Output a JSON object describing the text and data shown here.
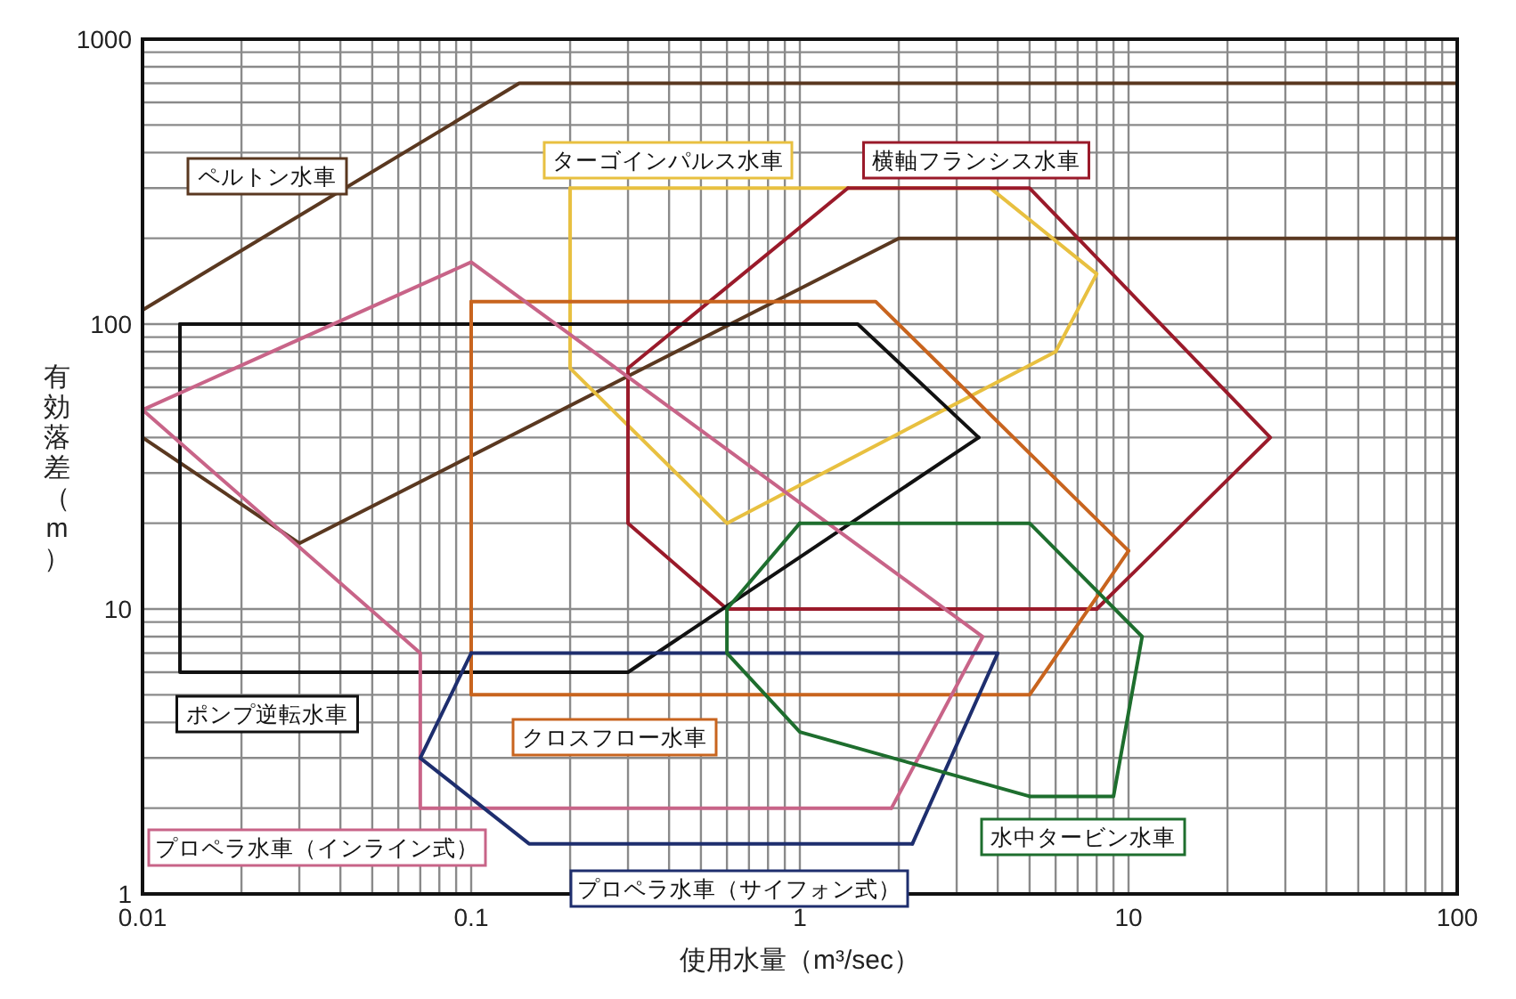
{
  "chart_data": {
    "type": "line",
    "xlabel": "使用水量（m³/sec）",
    "ylabel": "有効落差（m）",
    "log": "xy",
    "grid": true,
    "legend": false,
    "marker": "none",
    "line_style": "solid",
    "xlim": [
      0.01,
      100
    ],
    "xticks": [
      0.01,
      0.1,
      1,
      10,
      100
    ],
    "ylim": [
      1,
      1000
    ],
    "yticks": [
      1,
      10,
      100,
      1000
    ],
    "series": [
      {
        "name": "ペルトン水車",
        "color": "#5a3820",
        "x": [
          100,
          0.14,
          0.01,
          0.01,
          0.03,
          2,
          100
        ],
        "values": [
          700,
          700,
          112,
          40,
          17,
          200,
          200
        ]
      },
      {
        "name": "ターゴインパルス水車",
        "color": "#e8c040",
        "x": [
          0.2,
          3.8,
          8,
          6,
          0.6,
          0.2,
          0.2
        ],
        "values": [
          300,
          300,
          150,
          80,
          20,
          70,
          300
        ]
      },
      {
        "name": "横軸フランシス水車",
        "color": "#9a1a2a",
        "x": [
          1.4,
          5,
          27,
          8,
          0.6,
          0.3,
          0.3,
          1.4
        ],
        "values": [
          300,
          300,
          40,
          10,
          10,
          20,
          70,
          300
        ]
      },
      {
        "name": "ポンプ逆転水車",
        "color": "#111111",
        "x": [
          0.013,
          1.5,
          3.5,
          0.3,
          0.013,
          0.013
        ],
        "values": [
          100,
          100,
          40,
          6,
          6,
          100
        ]
      },
      {
        "name": "クロスフロー水車",
        "color": "#c8641e",
        "x": [
          0.1,
          1.7,
          10,
          5,
          0.1,
          0.1
        ],
        "values": [
          120,
          120,
          16,
          5,
          5,
          120
        ]
      },
      {
        "name": "プロペラ水車（インライン式）",
        "color": "#c86488",
        "x": [
          0.01,
          0.1,
          3.6,
          1.9,
          0.07,
          0.07,
          0.01
        ],
        "values": [
          50,
          165,
          8,
          2,
          2,
          7,
          50
        ]
      },
      {
        "name": "プロペラ水車（サイフォン式）",
        "color": "#1e2e6e",
        "x": [
          0.1,
          4,
          2.2,
          0.15,
          0.07,
          0.1
        ],
        "values": [
          7,
          7,
          1.5,
          1.5,
          3,
          7
        ]
      },
      {
        "name": "水中タービン水車",
        "color": "#1e6e2e",
        "x": [
          1,
          5,
          11,
          9,
          5,
          1,
          0.6,
          0.6,
          1
        ],
        "values": [
          20,
          20,
          8,
          2.2,
          2.2,
          3.7,
          7,
          10,
          20
        ]
      }
    ]
  }
}
